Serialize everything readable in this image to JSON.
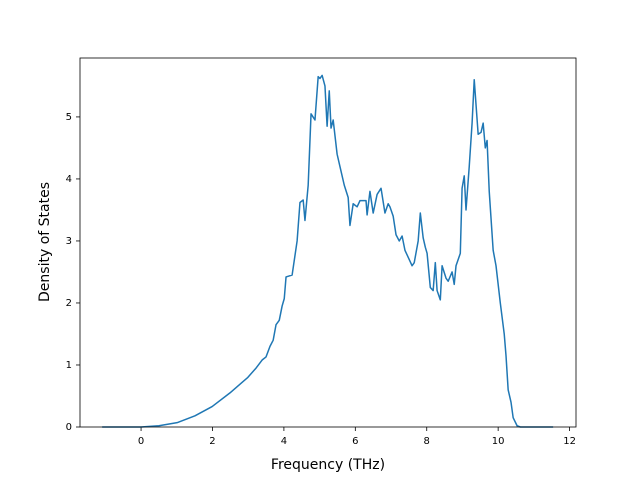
{
  "chart_data": {
    "type": "line",
    "xlabel": "Frequency (THz)",
    "ylabel": "Density of States",
    "x": [
      -1.09,
      0,
      0.5,
      1.01,
      1.51,
      1.99,
      2.49,
      2.99,
      3.22,
      3.39,
      3.5,
      3.61,
      3.7,
      3.78,
      3.87,
      3.95,
      4.01,
      4.06,
      4.23,
      4.37,
      4.45,
      4.54,
      4.59,
      4.68,
      4.76,
      4.87,
      4.96,
      5.01,
      5.07,
      5.15,
      5.21,
      5.27,
      5.32,
      5.38,
      5.49,
      5.57,
      5.69,
      5.8,
      5.85,
      5.94,
      6.05,
      6.13,
      6.3,
      6.33,
      6.41,
      6.5,
      6.61,
      6.72,
      6.83,
      6.92,
      6.97,
      7.06,
      7.14,
      7.23,
      7.31,
      7.39,
      7.51,
      7.59,
      7.65,
      7.76,
      7.82,
      7.9,
      7.96,
      8.01,
      8.1,
      8.18,
      8.24,
      8.29,
      8.38,
      8.43,
      8.54,
      8.6,
      8.71,
      8.77,
      8.82,
      8.94,
      8.99,
      9.05,
      9.1,
      9.19,
      9.27,
      9.33,
      9.44,
      9.52,
      9.58,
      9.64,
      9.69,
      9.75,
      9.86,
      9.94,
      10.06,
      10.17,
      10.22,
      10.28,
      10.36,
      10.42,
      10.53,
      10.62,
      11.54
    ],
    "series": [
      {
        "color": "#1f77b4",
        "values": [
          0,
          0,
          0.02,
          0.07,
          0.18,
          0.33,
          0.55,
          0.8,
          0.95,
          1.08,
          1.13,
          1.3,
          1.4,
          1.65,
          1.72,
          1.95,
          2.07,
          2.42,
          2.45,
          3.0,
          3.62,
          3.66,
          3.33,
          3.9,
          5.05,
          4.95,
          5.65,
          5.62,
          5.67,
          5.5,
          4.85,
          5.42,
          4.82,
          4.95,
          4.4,
          4.2,
          3.9,
          3.7,
          3.25,
          3.6,
          3.55,
          3.65,
          3.65,
          3.42,
          3.8,
          3.45,
          3.75,
          3.85,
          3.45,
          3.6,
          3.55,
          3.4,
          3.1,
          3.0,
          3.08,
          2.85,
          2.7,
          2.6,
          2.65,
          3.0,
          3.45,
          3.05,
          2.9,
          2.8,
          2.25,
          2.2,
          2.65,
          2.2,
          2.05,
          2.6,
          2.4,
          2.35,
          2.5,
          2.3,
          2.6,
          2.8,
          3.85,
          4.05,
          3.5,
          4.2,
          4.9,
          5.6,
          4.72,
          4.75,
          4.9,
          4.5,
          4.62,
          3.8,
          2.85,
          2.6,
          2.0,
          1.5,
          1.15,
          0.6,
          0.4,
          0.15,
          0.02,
          0,
          0
        ]
      }
    ],
    "xlim": [
      -1.71,
      12.18
    ],
    "ylim": [
      0,
      5.95
    ],
    "xticks": [
      0,
      2,
      4,
      6,
      8,
      10,
      12
    ],
    "yticks": [
      0,
      1,
      2,
      3,
      4,
      5
    ],
    "grid": false
  }
}
